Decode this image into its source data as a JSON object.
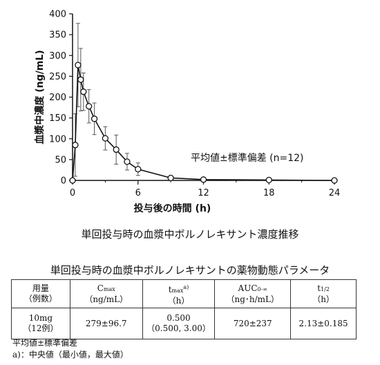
{
  "chart_data": {
    "type": "line",
    "xlabel": "投与後の時間 (h)",
    "ylabel": "血漿中濃度 (ng/mL)",
    "xlim": [
      0,
      24
    ],
    "ylim": [
      0,
      400
    ],
    "x_ticks": [
      "0",
      "6",
      "12",
      "18",
      "24"
    ],
    "x_minor_ticks": [
      3,
      9,
      15,
      21
    ],
    "y_ticks": [
      "0",
      "50",
      "100",
      "150",
      "200",
      "250",
      "300",
      "350",
      "400"
    ],
    "annotation": "平均値±標準偏差 (n=12)",
    "grid": false,
    "series": [
      {
        "x": [
          0,
          0.25,
          0.5,
          0.75,
          1,
          1.5,
          2,
          3,
          4,
          5,
          6,
          9,
          12,
          18,
          24
        ],
        "y": [
          0,
          85,
          277,
          242,
          213,
          178,
          148,
          101,
          74,
          45,
          27,
          6,
          2,
          1,
          0
        ],
        "sd": [
          0,
          75,
          100,
          75,
          45,
          40,
          38,
          28,
          35,
          20,
          15,
          0,
          0,
          0,
          0
        ]
      }
    ],
    "caption": "単回投与時の血漿中ボルノレキサント濃度推移"
  },
  "table": {
    "title": "単回投与時の血漿中ボルノレキサントの薬物動態パラメータ",
    "headers": [
      {
        "main": "用量",
        "sub": "（例数）"
      },
      {
        "main": "C",
        "subscript": "max",
        "sub": "（ng/mL）"
      },
      {
        "main": "t",
        "subscript": "max",
        "superscript": "a)",
        "sub": "（h）"
      },
      {
        "main": "AUC",
        "subscript": "0-∞",
        "sub": "（ng･h/mL）"
      },
      {
        "main": "t",
        "subscript": "1/2",
        "sub": "（h）"
      }
    ],
    "row": [
      {
        "main": "10mg",
        "sub": "（12例）"
      },
      {
        "main": "279±96.7",
        "sub": ""
      },
      {
        "main": "0.500",
        "sub": "（0.500, 3.00）"
      },
      {
        "main": "720±237",
        "sub": ""
      },
      {
        "main": "2.13±0.185",
        "sub": ""
      }
    ]
  },
  "notes": [
    "平均値±標準偏差",
    "a)：中央値（最小値，最大値）"
  ]
}
